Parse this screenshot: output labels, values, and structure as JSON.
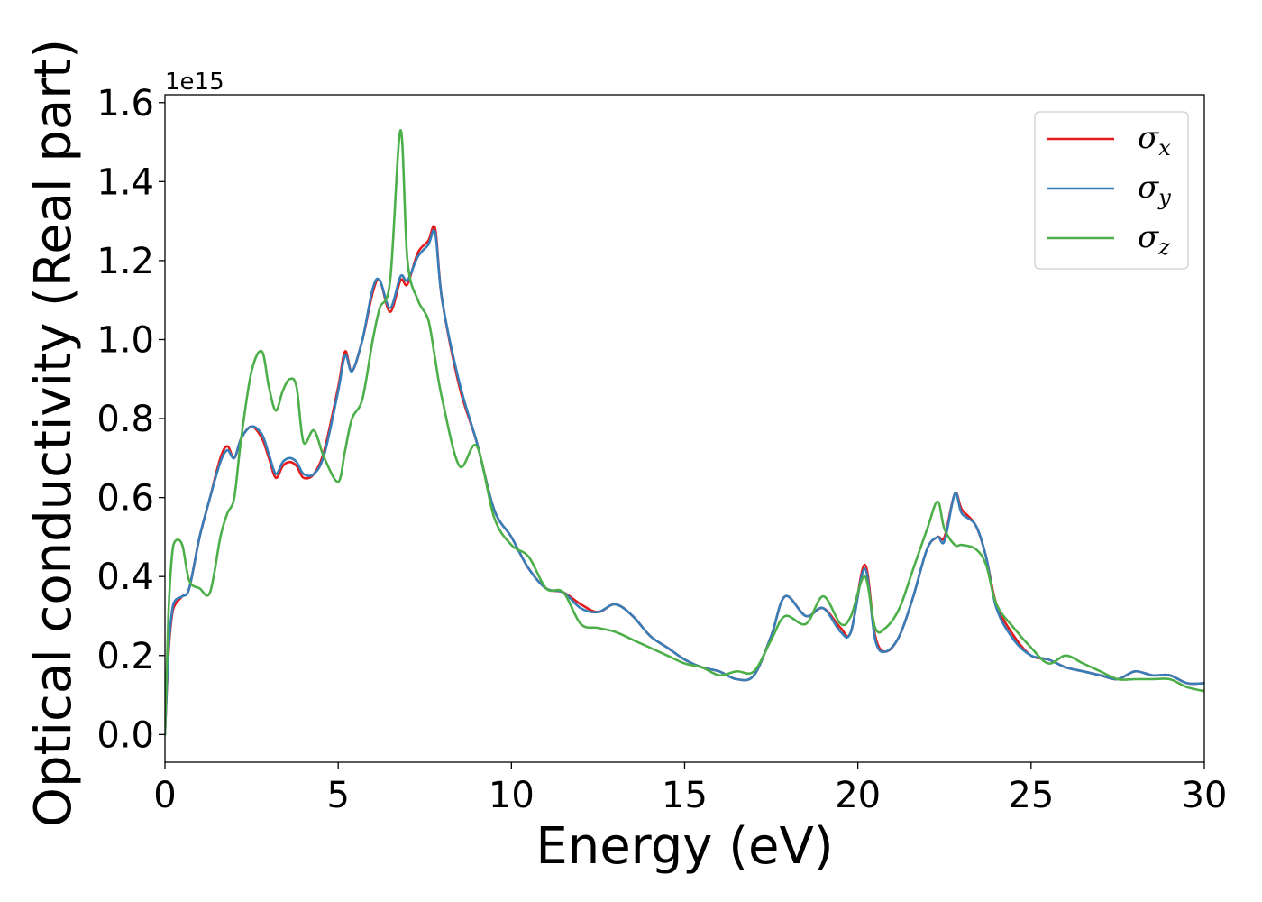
{
  "chart_data": {
    "type": "line",
    "title": "",
    "xlabel": "Energy (eV)",
    "ylabel": "Optical conductivity (Real part)",
    "y_offset_label": "1e15",
    "xlim": [
      0,
      30
    ],
    "ylim": [
      -0.07,
      1.62
    ],
    "x_ticks": [
      0,
      5,
      10,
      15,
      20,
      25,
      30
    ],
    "x_tick_labels": [
      "0",
      "5",
      "10",
      "15",
      "20",
      "25",
      "30"
    ],
    "y_ticks": [
      0.0,
      0.2,
      0.4,
      0.6,
      0.8,
      1.0,
      1.2,
      1.4,
      1.6
    ],
    "y_tick_labels": [
      "0.0",
      "0.2",
      "0.4",
      "0.6",
      "0.8",
      "1.0",
      "1.2",
      "1.4",
      "1.6"
    ],
    "grid": false,
    "legend_position": "top-right",
    "series": [
      {
        "name": "σx",
        "name_symbol": "σ",
        "name_sub": "x",
        "color": "#e41a1c",
        "x": [
          0,
          0.1,
          0.2,
          0.3,
          0.5,
          0.7,
          1.0,
          1.3,
          1.6,
          1.8,
          2.0,
          2.2,
          2.5,
          2.8,
          3.0,
          3.2,
          3.4,
          3.6,
          3.8,
          4.0,
          4.3,
          4.6,
          5.0,
          5.2,
          5.4,
          5.7,
          6.0,
          6.2,
          6.5,
          6.8,
          7.0,
          7.3,
          7.6,
          7.8,
          8.0,
          8.5,
          9.0,
          9.5,
          10.0,
          10.5,
          11.0,
          11.5,
          12.0,
          12.5,
          13.0,
          13.5,
          14.0,
          14.5,
          15.0,
          15.5,
          16.0,
          16.5,
          17.0,
          17.5,
          17.9,
          18.5,
          19.0,
          19.5,
          19.8,
          20.2,
          20.5,
          20.8,
          21.2,
          21.6,
          22.0,
          22.3,
          22.5,
          22.8,
          23.0,
          23.4,
          23.7,
          24.0,
          24.5,
          25.0,
          25.5,
          26.0,
          26.5,
          27.0,
          27.5,
          28.0,
          28.5,
          29.0,
          29.5,
          30.0
        ],
        "values": [
          0.0,
          0.2,
          0.3,
          0.33,
          0.35,
          0.37,
          0.5,
          0.6,
          0.7,
          0.73,
          0.7,
          0.75,
          0.78,
          0.75,
          0.7,
          0.65,
          0.68,
          0.69,
          0.68,
          0.65,
          0.66,
          0.72,
          0.88,
          0.97,
          0.92,
          1.0,
          1.12,
          1.15,
          1.07,
          1.15,
          1.14,
          1.22,
          1.25,
          1.28,
          1.1,
          0.88,
          0.74,
          0.57,
          0.5,
          0.42,
          0.37,
          0.36,
          0.33,
          0.31,
          0.33,
          0.3,
          0.25,
          0.22,
          0.19,
          0.17,
          0.16,
          0.14,
          0.15,
          0.25,
          0.35,
          0.3,
          0.32,
          0.27,
          0.26,
          0.43,
          0.25,
          0.21,
          0.25,
          0.35,
          0.47,
          0.5,
          0.5,
          0.61,
          0.57,
          0.53,
          0.45,
          0.33,
          0.25,
          0.2,
          0.19,
          0.17,
          0.16,
          0.15,
          0.14,
          0.16,
          0.15,
          0.15,
          0.13,
          0.13
        ]
      },
      {
        "name": "σy",
        "name_symbol": "σ",
        "name_sub": "y",
        "color": "#377eb8",
        "x": [
          0,
          0.1,
          0.2,
          0.3,
          0.5,
          0.7,
          1.0,
          1.3,
          1.6,
          1.8,
          2.0,
          2.2,
          2.5,
          2.8,
          3.0,
          3.2,
          3.4,
          3.6,
          3.8,
          4.0,
          4.3,
          4.6,
          5.0,
          5.2,
          5.4,
          5.7,
          6.0,
          6.2,
          6.5,
          6.8,
          7.0,
          7.3,
          7.6,
          7.8,
          8.0,
          8.5,
          9.0,
          9.5,
          10.0,
          10.5,
          11.0,
          11.5,
          12.0,
          12.5,
          13.0,
          13.5,
          14.0,
          14.5,
          15.0,
          15.5,
          16.0,
          16.5,
          17.0,
          17.5,
          17.9,
          18.5,
          19.0,
          19.5,
          19.8,
          20.2,
          20.5,
          20.8,
          21.2,
          21.6,
          22.0,
          22.3,
          22.5,
          22.8,
          23.0,
          23.4,
          23.7,
          24.0,
          24.5,
          25.0,
          25.5,
          26.0,
          26.5,
          27.0,
          27.5,
          28.0,
          28.5,
          29.0,
          29.5,
          30.0
        ],
        "values": [
          0.0,
          0.21,
          0.31,
          0.34,
          0.35,
          0.37,
          0.5,
          0.6,
          0.69,
          0.72,
          0.7,
          0.75,
          0.78,
          0.76,
          0.71,
          0.66,
          0.69,
          0.7,
          0.69,
          0.66,
          0.66,
          0.71,
          0.87,
          0.96,
          0.92,
          1.0,
          1.13,
          1.15,
          1.08,
          1.16,
          1.15,
          1.21,
          1.24,
          1.27,
          1.1,
          0.89,
          0.74,
          0.57,
          0.5,
          0.42,
          0.37,
          0.36,
          0.32,
          0.31,
          0.33,
          0.3,
          0.25,
          0.22,
          0.19,
          0.17,
          0.16,
          0.14,
          0.15,
          0.25,
          0.35,
          0.3,
          0.32,
          0.26,
          0.26,
          0.42,
          0.24,
          0.21,
          0.25,
          0.35,
          0.47,
          0.5,
          0.49,
          0.61,
          0.56,
          0.53,
          0.45,
          0.32,
          0.24,
          0.2,
          0.19,
          0.17,
          0.16,
          0.15,
          0.14,
          0.16,
          0.15,
          0.15,
          0.13,
          0.13
        ]
      },
      {
        "name": "σz",
        "name_symbol": "σ",
        "name_sub": "z",
        "color": "#4daf4a",
        "x": [
          0,
          0.1,
          0.2,
          0.3,
          0.5,
          0.7,
          1.0,
          1.3,
          1.6,
          1.8,
          2.0,
          2.2,
          2.5,
          2.8,
          3.0,
          3.2,
          3.4,
          3.6,
          3.8,
          4.0,
          4.3,
          4.6,
          5.0,
          5.2,
          5.4,
          5.7,
          6.0,
          6.2,
          6.5,
          6.8,
          7.0,
          7.3,
          7.6,
          7.8,
          8.0,
          8.5,
          9.0,
          9.5,
          10.0,
          10.5,
          11.0,
          11.5,
          12.0,
          12.5,
          13.0,
          13.5,
          14.0,
          14.5,
          15.0,
          15.5,
          16.0,
          16.5,
          17.0,
          17.5,
          17.9,
          18.5,
          19.0,
          19.5,
          19.8,
          20.2,
          20.5,
          20.8,
          21.2,
          21.6,
          22.0,
          22.3,
          22.5,
          22.8,
          23.0,
          23.4,
          23.7,
          24.0,
          24.5,
          25.0,
          25.5,
          26.0,
          26.5,
          27.0,
          27.5,
          28.0,
          28.5,
          29.0,
          29.5,
          30.0
        ],
        "values": [
          0.0,
          0.3,
          0.45,
          0.49,
          0.48,
          0.39,
          0.37,
          0.36,
          0.5,
          0.56,
          0.6,
          0.75,
          0.92,
          0.97,
          0.88,
          0.82,
          0.87,
          0.9,
          0.88,
          0.74,
          0.77,
          0.7,
          0.64,
          0.72,
          0.8,
          0.85,
          1.0,
          1.08,
          1.15,
          1.53,
          1.2,
          1.1,
          1.05,
          0.95,
          0.85,
          0.68,
          0.73,
          0.55,
          0.48,
          0.45,
          0.37,
          0.36,
          0.28,
          0.27,
          0.26,
          0.24,
          0.22,
          0.2,
          0.18,
          0.17,
          0.15,
          0.16,
          0.16,
          0.24,
          0.3,
          0.28,
          0.35,
          0.28,
          0.3,
          0.4,
          0.27,
          0.27,
          0.32,
          0.42,
          0.52,
          0.59,
          0.52,
          0.48,
          0.48,
          0.47,
          0.43,
          0.33,
          0.27,
          0.22,
          0.18,
          0.2,
          0.18,
          0.16,
          0.14,
          0.14,
          0.14,
          0.14,
          0.12,
          0.11
        ]
      }
    ]
  }
}
